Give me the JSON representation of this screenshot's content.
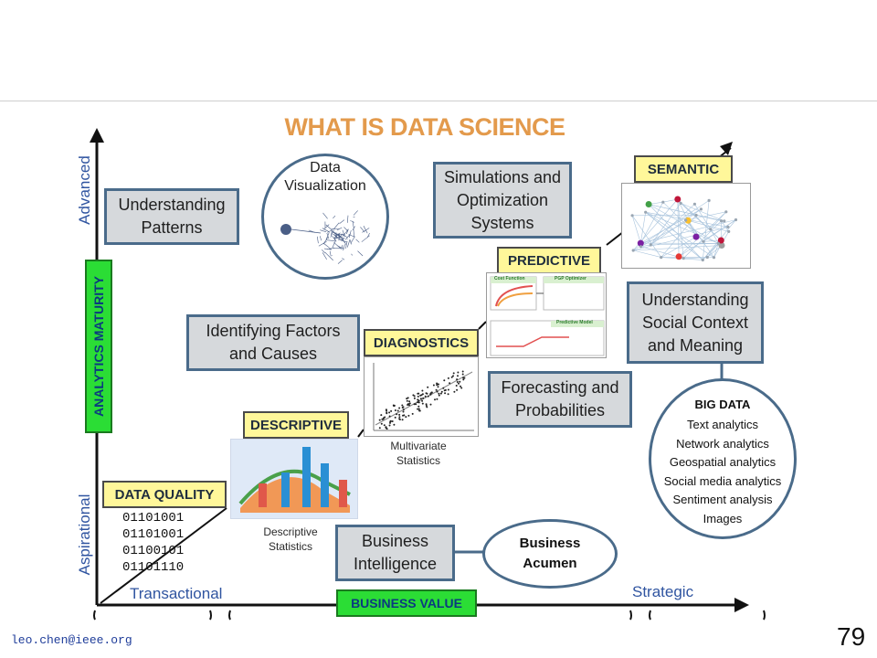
{
  "title": "WHAT IS DATA SCIENCE",
  "y_axis": {
    "top": "Advanced",
    "bottom": "Aspirational",
    "label": "ANALYTICS MATURITY"
  },
  "x_axis": {
    "left": "Transactional",
    "right": "Strategic",
    "label": "BUSINESS VALUE"
  },
  "stages": {
    "data_quality": "DATA QUALITY",
    "descriptive": "DESCRIPTIVE",
    "diagnostics": "DIAGNOSTICS",
    "predictive": "PREDICTIVE",
    "semantic": "SEMANTIC"
  },
  "boxes": {
    "understanding_patterns": "Understanding\nPatterns",
    "identifying_factors": "Identifying Factors\nand Causes",
    "simulations": "Simulations and\nOptimization\nSystems",
    "social_context": "Understanding\nSocial Context\nand Meaning",
    "forecasting": "Forecasting and\nProbabilities",
    "business_intelligence": "Business\nIntelligence"
  },
  "data_visualization": {
    "label": "Data\nVisualization"
  },
  "business_acumen": "Business\nAcumen",
  "big_data": {
    "title": "BIG DATA",
    "items": [
      "Text analytics",
      "Network analytics",
      "Geospatial analytics",
      "Social media analytics",
      "Sentiment analysis",
      "Images"
    ]
  },
  "binary_lines": "01101001\n01101001\n01100101\n01101110",
  "captions": {
    "descriptive_stats": "Descriptive\nStatistics",
    "multivariate_stats": "Multivariate\nStatistics"
  },
  "predictive_thumb_labels": {
    "cost": "Cost Function",
    "pgp": "PGP Optimizer",
    "model": "Predictive Model"
  },
  "footer": {
    "email": "leo.chen@ieee.org",
    "page_number": "79"
  },
  "colors": {
    "title": "#e39a4c",
    "axis": "#2f54a0",
    "box_border": "#4a6b8a",
    "stage_tag": "#fff79a",
    "green_label": "#2bdd35"
  }
}
